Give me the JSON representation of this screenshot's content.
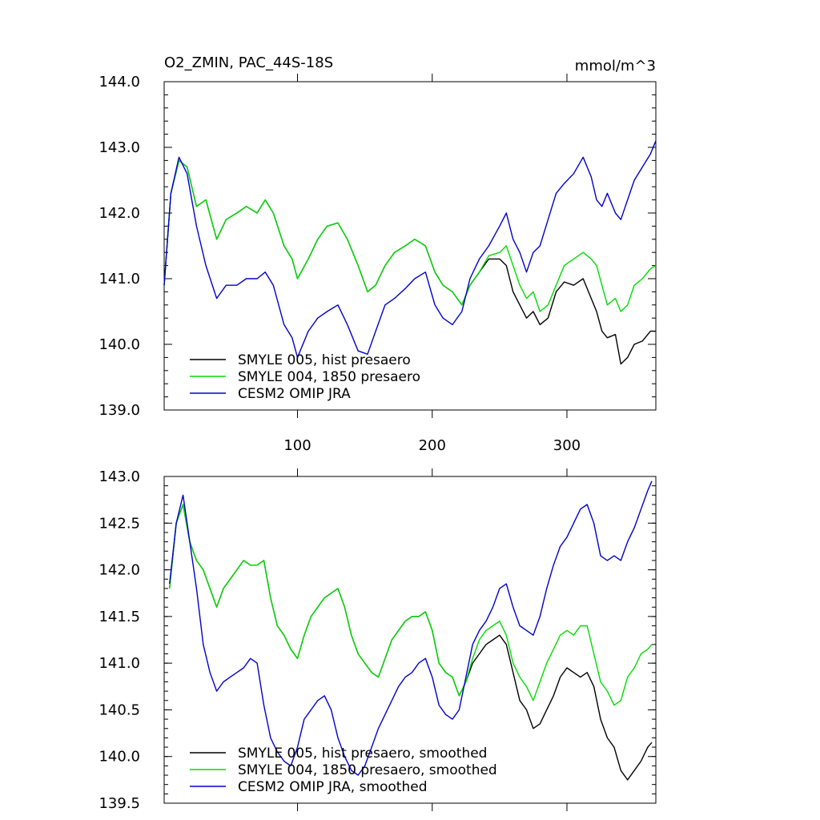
{
  "chart_data": [
    {
      "type": "line",
      "title": "O2_ZMIN, PAC_44S-18S",
      "units": "mmol/m^3",
      "xlim": [
        1,
        366
      ],
      "ylim": [
        139.0,
        144.0
      ],
      "xticks": [
        100,
        200,
        300
      ],
      "xtick_labels": [
        "100",
        "200",
        "300"
      ],
      "yticks": [
        139.0,
        140.0,
        141.0,
        142.0,
        143.0,
        144.0
      ],
      "ytick_labels": [
        "139.0",
        "140.0",
        "141.0",
        "142.0",
        "143.0",
        "144.0"
      ],
      "legend_position": "bottom-left",
      "series": [
        {
          "name": "SMYLE 005, hist presaero",
          "color": "#000000",
          "x": [
            1,
            6,
            12,
            18,
            25,
            32,
            40,
            47,
            55,
            62,
            70,
            76,
            82,
            90,
            96,
            100,
            108,
            115,
            122,
            130,
            137,
            145,
            152,
            158,
            165,
            172,
            180,
            187,
            195,
            202,
            208,
            215,
            222,
            228,
            235,
            242,
            250,
            255,
            260,
            265,
            270,
            275,
            280,
            286,
            292,
            298,
            305,
            312,
            318,
            322,
            326,
            330,
            336,
            340,
            345,
            350,
            356,
            362,
            366
          ],
          "y": [
            140.9,
            142.3,
            142.8,
            142.7,
            142.1,
            142.2,
            141.6,
            141.9,
            142.0,
            142.1,
            142.0,
            142.2,
            142.0,
            141.5,
            141.3,
            141.0,
            141.3,
            141.6,
            141.8,
            141.85,
            141.6,
            141.2,
            140.8,
            140.9,
            141.2,
            141.4,
            141.5,
            141.6,
            141.5,
            141.1,
            140.9,
            140.8,
            140.6,
            140.9,
            141.1,
            141.3,
            141.3,
            141.2,
            140.8,
            140.6,
            140.4,
            140.5,
            140.3,
            140.4,
            140.8,
            140.95,
            140.9,
            141.0,
            140.7,
            140.5,
            140.2,
            140.1,
            140.15,
            139.7,
            139.8,
            140.0,
            140.05,
            140.2,
            140.2
          ]
        },
        {
          "name": "SMYLE 004, 1850 presaero",
          "color": "#00dd00",
          "x": [
            1,
            6,
            12,
            18,
            25,
            32,
            40,
            47,
            55,
            62,
            70,
            76,
            82,
            90,
            96,
            100,
            108,
            115,
            122,
            130,
            137,
            145,
            152,
            158,
            165,
            172,
            180,
            187,
            195,
            202,
            208,
            215,
            222,
            228,
            235,
            242,
            250,
            255,
            260,
            265,
            270,
            275,
            280,
            286,
            292,
            298,
            305,
            312,
            318,
            322,
            326,
            330,
            336,
            340,
            345,
            350,
            356,
            362,
            366
          ],
          "y": [
            140.9,
            142.3,
            142.8,
            142.7,
            142.1,
            142.2,
            141.6,
            141.9,
            142.0,
            142.1,
            142.0,
            142.2,
            142.0,
            141.5,
            141.3,
            141.0,
            141.3,
            141.6,
            141.8,
            141.85,
            141.6,
            141.2,
            140.8,
            140.9,
            141.2,
            141.4,
            141.5,
            141.6,
            141.5,
            141.1,
            140.9,
            140.8,
            140.6,
            140.9,
            141.1,
            141.35,
            141.4,
            141.5,
            141.2,
            140.9,
            140.7,
            140.8,
            140.5,
            140.6,
            140.9,
            141.2,
            141.3,
            141.4,
            141.3,
            141.2,
            140.9,
            140.6,
            140.7,
            140.5,
            140.6,
            140.9,
            141.0,
            141.15,
            141.2
          ]
        },
        {
          "name": "CESM2 OMIP JRA",
          "color": "#0000cc",
          "x": [
            1,
            6,
            12,
            18,
            25,
            32,
            40,
            47,
            55,
            62,
            70,
            76,
            82,
            90,
            96,
            100,
            108,
            115,
            122,
            130,
            137,
            145,
            152,
            158,
            165,
            172,
            180,
            187,
            195,
            202,
            208,
            215,
            222,
            228,
            235,
            242,
            250,
            255,
            260,
            265,
            270,
            275,
            280,
            286,
            292,
            298,
            305,
            312,
            318,
            322,
            326,
            330,
            336,
            340,
            345,
            350,
            356,
            362,
            366
          ],
          "y": [
            140.9,
            142.3,
            142.85,
            142.6,
            141.8,
            141.2,
            140.7,
            140.9,
            140.9,
            141.0,
            141.0,
            141.1,
            140.9,
            140.3,
            140.1,
            139.8,
            140.2,
            140.4,
            140.5,
            140.6,
            140.3,
            139.9,
            139.85,
            140.2,
            140.6,
            140.7,
            140.85,
            141.0,
            141.1,
            140.6,
            140.4,
            140.3,
            140.5,
            141.0,
            141.3,
            141.5,
            141.8,
            142.0,
            141.6,
            141.4,
            141.1,
            141.4,
            141.5,
            141.9,
            142.3,
            142.45,
            142.6,
            142.85,
            142.55,
            142.2,
            142.1,
            142.3,
            142.0,
            141.9,
            142.2,
            142.5,
            142.7,
            142.9,
            143.1
          ]
        }
      ]
    },
    {
      "type": "line",
      "title": "",
      "xlim": [
        1,
        366
      ],
      "ylim": [
        139.5,
        143.0
      ],
      "xticks": [
        100,
        200,
        300
      ],
      "yticks": [
        139.5,
        140.0,
        140.5,
        141.0,
        141.5,
        142.0,
        142.5,
        143.0
      ],
      "ytick_labels": [
        "139.5",
        "140.0",
        "140.5",
        "141.0",
        "141.5",
        "142.0",
        "142.5",
        "143.0"
      ],
      "legend_position": "bottom-left",
      "series": [
        {
          "name": "SMYLE 005, hist presaero, smoothed",
          "color": "#000000",
          "x": [
            5,
            10,
            15,
            20,
            25,
            30,
            35,
            40,
            45,
            50,
            55,
            60,
            65,
            70,
            75,
            80,
            85,
            90,
            95,
            100,
            105,
            110,
            115,
            120,
            125,
            130,
            135,
            140,
            145,
            150,
            155,
            160,
            165,
            170,
            175,
            180,
            185,
            190,
            195,
            200,
            205,
            210,
            215,
            220,
            225,
            230,
            235,
            240,
            245,
            250,
            255,
            260,
            265,
            270,
            275,
            280,
            285,
            290,
            295,
            300,
            305,
            310,
            315,
            320,
            325,
            330,
            335,
            340,
            345,
            350,
            355,
            360,
            363
          ],
          "y": [
            141.8,
            142.5,
            142.7,
            142.3,
            142.1,
            142.0,
            141.8,
            141.6,
            141.8,
            141.9,
            142.0,
            142.1,
            142.05,
            142.05,
            142.1,
            141.7,
            141.4,
            141.3,
            141.15,
            141.05,
            141.3,
            141.5,
            141.6,
            141.7,
            141.75,
            141.8,
            141.6,
            141.3,
            141.1,
            141.0,
            140.9,
            140.85,
            141.05,
            141.25,
            141.35,
            141.45,
            141.5,
            141.5,
            141.55,
            141.35,
            141.0,
            140.9,
            140.85,
            140.65,
            140.8,
            141.0,
            141.1,
            141.2,
            141.25,
            141.3,
            141.2,
            140.9,
            140.6,
            140.5,
            140.3,
            140.35,
            140.5,
            140.65,
            140.85,
            140.95,
            140.9,
            140.85,
            140.9,
            140.75,
            140.4,
            140.2,
            140.1,
            139.85,
            139.75,
            139.85,
            139.95,
            140.1,
            140.15
          ]
        },
        {
          "name": "SMYLE 004, 1850 presaero, smoothed",
          "color": "#00dd00",
          "x": [
            5,
            10,
            15,
            20,
            25,
            30,
            35,
            40,
            45,
            50,
            55,
            60,
            65,
            70,
            75,
            80,
            85,
            90,
            95,
            100,
            105,
            110,
            115,
            120,
            125,
            130,
            135,
            140,
            145,
            150,
            155,
            160,
            165,
            170,
            175,
            180,
            185,
            190,
            195,
            200,
            205,
            210,
            215,
            220,
            225,
            230,
            235,
            240,
            245,
            250,
            255,
            260,
            265,
            270,
            275,
            280,
            285,
            290,
            295,
            300,
            305,
            310,
            315,
            320,
            325,
            330,
            335,
            340,
            345,
            350,
            355,
            360,
            363
          ],
          "y": [
            141.8,
            142.5,
            142.7,
            142.3,
            142.1,
            142.0,
            141.8,
            141.6,
            141.8,
            141.9,
            142.0,
            142.1,
            142.05,
            142.05,
            142.1,
            141.7,
            141.4,
            141.3,
            141.15,
            141.05,
            141.3,
            141.5,
            141.6,
            141.7,
            141.75,
            141.8,
            141.6,
            141.3,
            141.1,
            141.0,
            140.9,
            140.85,
            141.05,
            141.25,
            141.35,
            141.45,
            141.5,
            141.5,
            141.55,
            141.35,
            141.0,
            140.9,
            140.85,
            140.65,
            140.8,
            141.05,
            141.25,
            141.35,
            141.4,
            141.45,
            141.3,
            141.0,
            140.85,
            140.75,
            140.6,
            140.8,
            141.0,
            141.15,
            141.3,
            141.35,
            141.3,
            141.4,
            141.4,
            141.1,
            140.8,
            140.7,
            140.55,
            140.6,
            140.85,
            140.95,
            141.1,
            141.15,
            141.2
          ]
        },
        {
          "name": "CESM2 OMIP JRA, smoothed",
          "color": "#0000cc",
          "x": [
            5,
            10,
            15,
            20,
            25,
            30,
            35,
            40,
            45,
            50,
            55,
            60,
            65,
            70,
            75,
            80,
            85,
            90,
            95,
            100,
            105,
            110,
            115,
            120,
            125,
            130,
            135,
            140,
            145,
            150,
            155,
            160,
            165,
            170,
            175,
            180,
            185,
            190,
            195,
            200,
            205,
            210,
            215,
            220,
            225,
            230,
            235,
            240,
            245,
            250,
            255,
            260,
            265,
            270,
            275,
            280,
            285,
            290,
            295,
            300,
            305,
            310,
            315,
            320,
            325,
            330,
            335,
            340,
            345,
            350,
            355,
            360,
            363
          ],
          "y": [
            141.85,
            142.5,
            142.8,
            142.3,
            141.8,
            141.2,
            140.9,
            140.7,
            140.8,
            140.85,
            140.9,
            140.95,
            141.05,
            141.0,
            140.55,
            140.2,
            140.05,
            139.95,
            139.9,
            140.1,
            140.4,
            140.5,
            140.6,
            140.65,
            140.5,
            140.2,
            140.0,
            139.85,
            139.8,
            139.9,
            140.1,
            140.3,
            140.45,
            140.6,
            140.75,
            140.85,
            140.9,
            141.0,
            141.05,
            140.85,
            140.55,
            140.45,
            140.4,
            140.5,
            140.85,
            141.2,
            141.35,
            141.45,
            141.6,
            141.8,
            141.85,
            141.6,
            141.4,
            141.35,
            141.3,
            141.5,
            141.8,
            142.05,
            142.25,
            142.35,
            142.5,
            142.65,
            142.7,
            142.5,
            142.15,
            142.1,
            142.15,
            142.1,
            142.3,
            142.45,
            142.65,
            142.85,
            142.95
          ]
        }
      ]
    }
  ]
}
